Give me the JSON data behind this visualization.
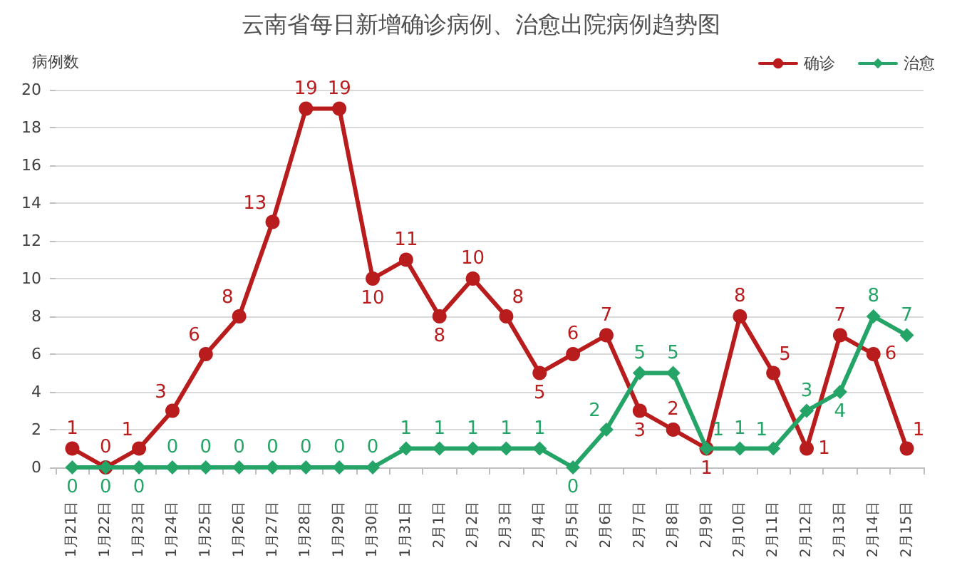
{
  "chart_data": {
    "type": "line",
    "title": "云南省每日新增确诊病例、治愈出院病例趋势图",
    "ylabel": "病例数",
    "categories": [
      "1月21日",
      "1月22日",
      "1月23日",
      "1月24日",
      "1月25日",
      "1月26日",
      "1月27日",
      "1月28日",
      "1月29日",
      "1月30日",
      "1月31日",
      "2月1日",
      "2月2日",
      "2月3日",
      "2月4日",
      "2月5日",
      "2月6日",
      "2月7日",
      "2月8日",
      "2月9日",
      "2月10日",
      "2月11日",
      "2月12日",
      "2月13日",
      "2月14日",
      "2月15日"
    ],
    "series": [
      {
        "name": "确诊",
        "color": "#b91c1c",
        "marker": "circle",
        "values": [
          1,
          0,
          1,
          3,
          6,
          8,
          13,
          19,
          19,
          10,
          11,
          8,
          10,
          8,
          5,
          6,
          7,
          3,
          2,
          1,
          8,
          5,
          1,
          7,
          6,
          1
        ]
      },
      {
        "name": "治愈",
        "color": "#24a466",
        "marker": "diamond",
        "values": [
          0,
          0,
          0,
          0,
          0,
          0,
          0,
          0,
          0,
          0,
          1,
          1,
          1,
          1,
          1,
          0,
          2,
          5,
          5,
          1,
          1,
          1,
          3,
          4,
          8,
          7
        ]
      }
    ],
    "ylim": [
      0,
      20
    ],
    "yticks": [
      0,
      2,
      4,
      6,
      8,
      10,
      12,
      14,
      16,
      18,
      20
    ],
    "grid": "y",
    "legend": "top right",
    "data_labels": true
  }
}
